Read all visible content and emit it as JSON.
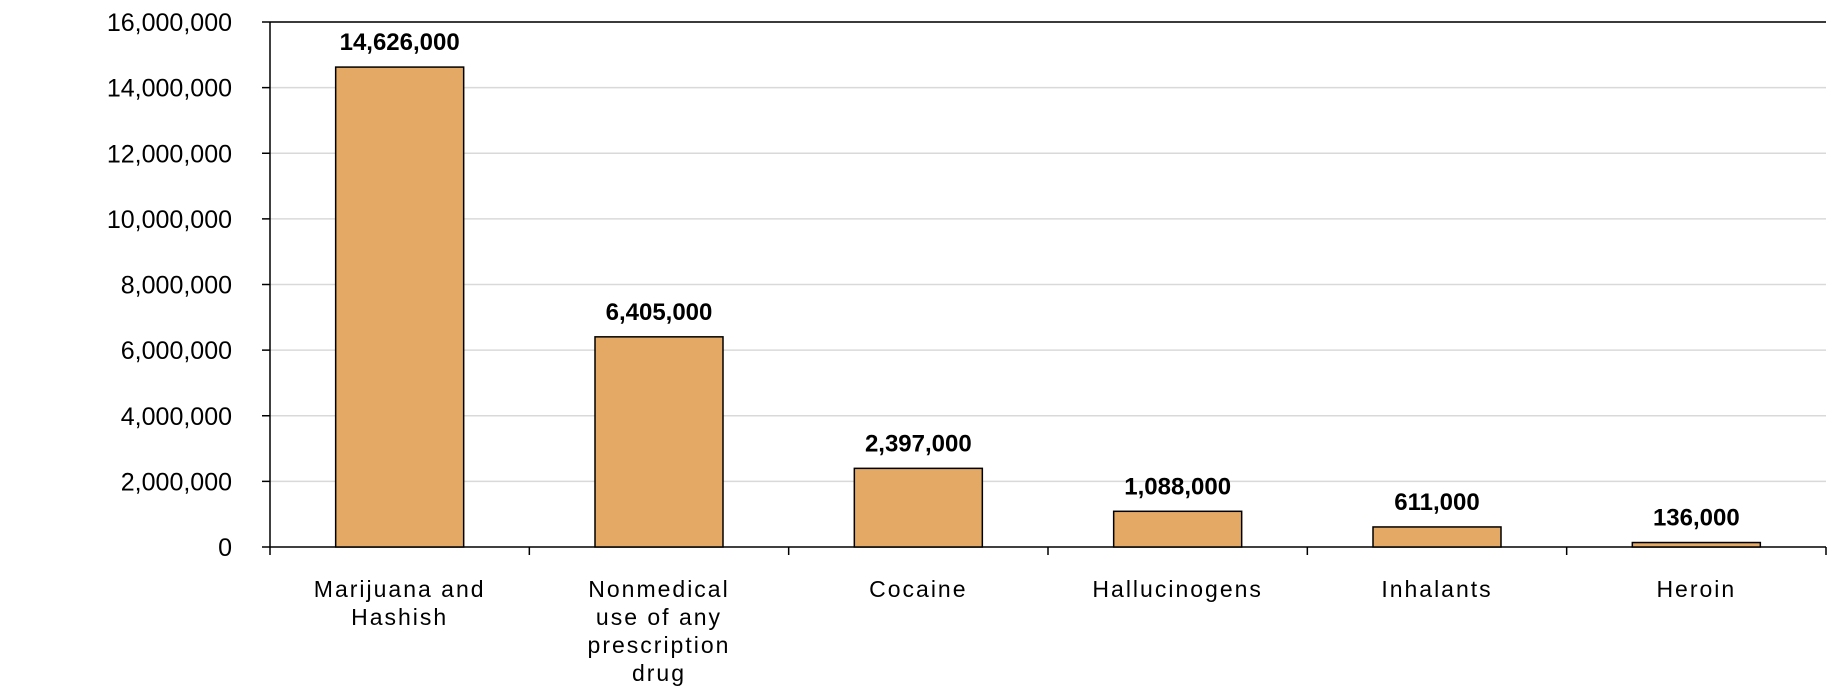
{
  "chart_data": {
    "type": "bar",
    "categories": [
      [
        "Marijuana and",
        "Hashish"
      ],
      [
        "Nonmedical",
        "use of any",
        "prescription",
        "drug"
      ],
      [
        "Cocaine"
      ],
      [
        "Hallucinogens"
      ],
      [
        "Inhalants"
      ],
      [
        "Heroin"
      ]
    ],
    "values": [
      14626000,
      6405000,
      2397000,
      1088000,
      611000,
      136000
    ],
    "data_labels": [
      "14,626,000",
      "6,405,000",
      "2,397,000",
      "1,088,000",
      "611,000",
      "136,000"
    ],
    "y_ticks": [
      "0",
      "2,000,000",
      "4,000,000",
      "6,000,000",
      "8,000,000",
      "10,000,000",
      "12,000,000",
      "14,000,000",
      "16,000,000"
    ],
    "ylim": [
      0,
      16000000
    ],
    "grid": true,
    "bar_color": "#E3A965",
    "title": "",
    "xlabel": "",
    "ylabel": ""
  }
}
